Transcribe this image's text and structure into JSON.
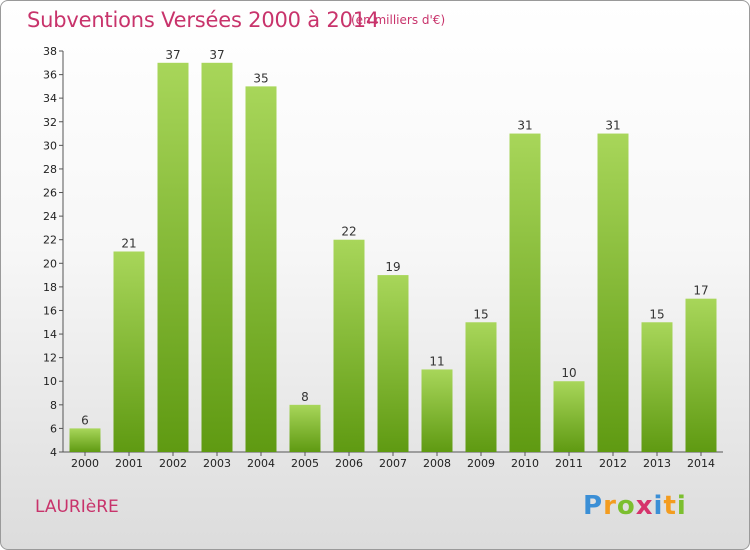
{
  "header": {
    "title": "Subventions Versées 2000 à 2014",
    "unit": "(en milliers d'€)"
  },
  "footer": {
    "commune": "LAURIèRE",
    "logo_letters": [
      "P",
      "r",
      "o",
      "x",
      "i",
      "t",
      "i"
    ]
  },
  "colors": {
    "bar_light": "#a8d65a",
    "bar_dark": "#5f9a12",
    "accent": "#c8336b"
  },
  "chart_data": {
    "type": "bar",
    "title": "Subventions Versées 2000 à 2014",
    "subtitle": "(en milliers d'€)",
    "categories": [
      "2000",
      "2001",
      "2002",
      "2003",
      "2004",
      "2005",
      "2006",
      "2007",
      "2008",
      "2009",
      "2010",
      "2011",
      "2012",
      "2013",
      "2014"
    ],
    "values": [
      6,
      21,
      37,
      37,
      35,
      8,
      22,
      19,
      11,
      15,
      31,
      10,
      31,
      15,
      17
    ],
    "ylim": [
      4,
      38
    ],
    "yticks": [
      4,
      6,
      8,
      10,
      12,
      14,
      16,
      18,
      20,
      22,
      24,
      26,
      28,
      30,
      32,
      34,
      36,
      38
    ],
    "grid": false,
    "legend": "none"
  }
}
